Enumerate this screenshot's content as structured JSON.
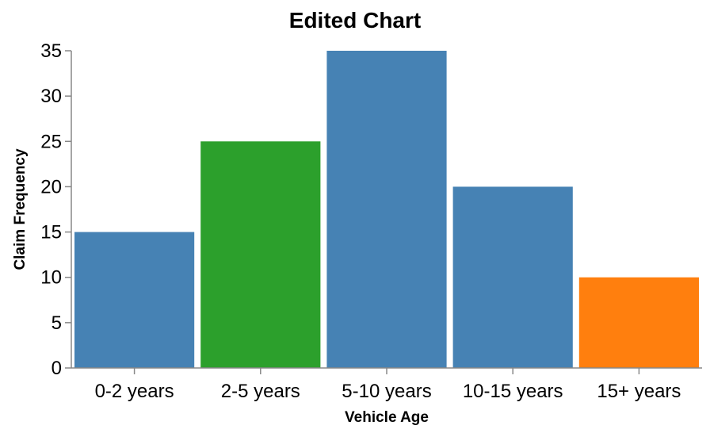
{
  "chart_data": {
    "type": "bar",
    "title": "Edited Chart",
    "xlabel": "Vehicle Age",
    "ylabel": "Claim Frequency",
    "categories": [
      "0-2 years",
      "2-5 years",
      "5-10 years",
      "10-15 years",
      "15+ years"
    ],
    "values": [
      15,
      25,
      35,
      20,
      10
    ],
    "bar_colors": [
      "#4682b4",
      "#2ca02c",
      "#4682b4",
      "#4682b4",
      "#ff7f0e"
    ],
    "ylim": [
      0,
      35
    ],
    "yticks": [
      "0",
      "5",
      "10",
      "15",
      "20",
      "25",
      "30",
      "35"
    ],
    "grid": false,
    "legend": "none"
  }
}
